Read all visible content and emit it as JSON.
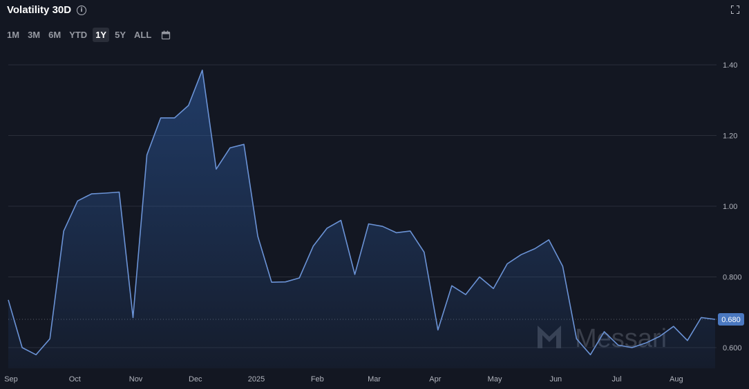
{
  "header": {
    "title": "Volatility 30D",
    "info_icon": "info-icon",
    "fullscreen_icon": "expand-icon"
  },
  "range_selector": {
    "buttons": [
      "1M",
      "3M",
      "6M",
      "YTD",
      "1Y",
      "5Y",
      "ALL"
    ],
    "active": "1Y",
    "calendar_icon": "calendar-icon"
  },
  "watermark": {
    "text": "Messari"
  },
  "current_value_label": "0.680",
  "chart_data": {
    "type": "area",
    "title": "Volatility 30D",
    "xlabel": "",
    "ylabel": "",
    "ylim": [
      0.55,
      1.41
    ],
    "y_ticks": [
      {
        "value": 1.4,
        "label": "1.40"
      },
      {
        "value": 1.2,
        "label": "1.20"
      },
      {
        "value": 1.0,
        "label": "1.00"
      },
      {
        "value": 0.8,
        "label": "0.800"
      },
      {
        "value": 0.6,
        "label": "0.600"
      }
    ],
    "x_ticks": [
      {
        "label": "Sep",
        "pos": 0.2
      },
      {
        "label": "Oct",
        "pos": 4.8
      },
      {
        "label": "Nov",
        "pos": 9.2
      },
      {
        "label": "Dec",
        "pos": 13.5
      },
      {
        "label": "2025",
        "pos": 17.9
      },
      {
        "label": "Feb",
        "pos": 22.3
      },
      {
        "label": "Mar",
        "pos": 26.4
      },
      {
        "label": "Apr",
        "pos": 30.8
      },
      {
        "label": "May",
        "pos": 35.1
      },
      {
        "label": "Jun",
        "pos": 39.5
      },
      {
        "label": "Jul",
        "pos": 43.9
      },
      {
        "label": "Aug",
        "pos": 48.2
      }
    ],
    "grid": true,
    "current_value": 0.68,
    "series": [
      {
        "values": [
          0.735,
          0.6,
          0.58,
          0.625,
          0.93,
          1.015,
          1.035,
          1.037,
          1.04,
          0.685,
          1.145,
          1.25,
          1.25,
          1.285,
          1.385,
          1.105,
          1.165,
          1.175,
          0.915,
          0.785,
          0.786,
          0.797,
          0.887,
          0.938,
          0.96,
          0.807,
          0.95,
          0.943,
          0.925,
          0.93,
          0.87,
          0.65,
          0.775,
          0.75,
          0.8,
          0.767,
          0.837,
          0.863,
          0.88,
          0.905,
          0.83,
          0.625,
          0.58,
          0.645,
          0.607,
          0.6,
          0.613,
          0.632,
          0.66,
          0.62,
          0.685,
          0.68
        ]
      }
    ]
  }
}
